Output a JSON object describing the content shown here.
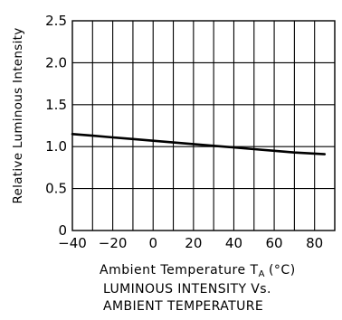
{
  "chart_data": {
    "type": "line",
    "title": "",
    "caption_lines": [
      "LUMINOUS INTENSITY Vs.",
      "AMBIENT TEMPERATURE"
    ],
    "xlabel_main": "Ambient Temperature T",
    "xlabel_subscript": "A",
    "xlabel_unit": "(°C)",
    "ylabel": "Relative Luminous Intensity",
    "xlim": [
      -40,
      90
    ],
    "ylim": [
      0,
      2.5
    ],
    "x_ticks": [
      -40,
      -20,
      0,
      20,
      40,
      60,
      80
    ],
    "x_tick_labels": [
      "−40",
      "−20",
      "0",
      "20",
      "40",
      "60",
      "80"
    ],
    "y_ticks": [
      0,
      0.5,
      1.0,
      1.5,
      2.0,
      2.5
    ],
    "y_tick_labels": [
      "0",
      "0.5",
      "1.0",
      "1.5",
      "2.0",
      "2.5"
    ],
    "x_grid_step": 10,
    "grid": true,
    "series": [
      {
        "x": [
          -40,
          -30,
          -20,
          -10,
          0,
          10,
          20,
          30,
          40,
          50,
          60,
          70,
          85
        ],
        "y": [
          1.15,
          1.13,
          1.11,
          1.09,
          1.07,
          1.05,
          1.03,
          1.01,
          0.99,
          0.97,
          0.95,
          0.93,
          0.91
        ]
      }
    ],
    "colors": {
      "line": "#000000",
      "grid": "#000000",
      "background": "#ffffff"
    }
  }
}
